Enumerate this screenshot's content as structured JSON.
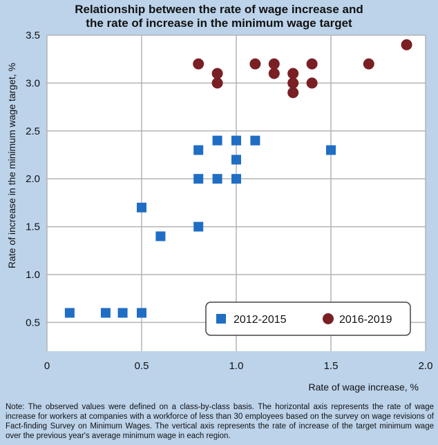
{
  "chart_data": {
    "type": "scatter",
    "title_lines": [
      "Relationship between the rate of wage increase and",
      "the rate of increase in the minimum wage target"
    ],
    "xlabel": "Rate of wage increase, %",
    "ylabel": "Rate of increase in the minimum wage target, %",
    "xlim": [
      0,
      2.0
    ],
    "ylim": [
      0.2,
      3.5
    ],
    "x_ticks": [
      "0",
      "0.5",
      "1.0",
      "1.5",
      "2.0"
    ],
    "y_ticks": [
      "0.5",
      "1.0",
      "1.5",
      "2.0",
      "2.5",
      "3.0",
      "3.5"
    ],
    "grid": true,
    "legend_position": "bottom-right",
    "series": [
      {
        "name": "2012-2015",
        "marker": "square",
        "color": "#1f6ec4",
        "points": [
          [
            0.12,
            0.6
          ],
          [
            0.31,
            0.6
          ],
          [
            0.4,
            0.6
          ],
          [
            0.5,
            0.6
          ],
          [
            0.5,
            1.7
          ],
          [
            0.6,
            1.4
          ],
          [
            0.8,
            1.5
          ],
          [
            0.8,
            2.0
          ],
          [
            0.8,
            2.3
          ],
          [
            0.9,
            2.0
          ],
          [
            0.9,
            2.4
          ],
          [
            1.0,
            2.0
          ],
          [
            1.0,
            2.2
          ],
          [
            1.0,
            2.4
          ],
          [
            1.1,
            2.4
          ],
          [
            1.5,
            2.3
          ]
        ]
      },
      {
        "name": "2016-2019",
        "marker": "circle",
        "color": "#7a1f24",
        "points": [
          [
            0.8,
            3.2
          ],
          [
            0.9,
            3.1
          ],
          [
            0.9,
            3.0
          ],
          [
            1.1,
            3.2
          ],
          [
            1.2,
            3.2
          ],
          [
            1.2,
            3.1
          ],
          [
            1.3,
            3.1
          ],
          [
            1.3,
            3.0
          ],
          [
            1.3,
            2.9
          ],
          [
            1.4,
            3.2
          ],
          [
            1.4,
            3.0
          ],
          [
            1.7,
            3.2
          ],
          [
            1.9,
            3.4
          ]
        ]
      }
    ]
  },
  "note": "Note: The observed values were defined on a class-by-class basis. The horizontal axis represents the rate of wage increase for workers at companies with a workforce of less than 30 employees based on the survey on wage revisions of Fact-finding Survey on Minimum Wages. The vertical axis represents the rate of increase of the target minimum wage over the previous year's average minimum wage in each region."
}
